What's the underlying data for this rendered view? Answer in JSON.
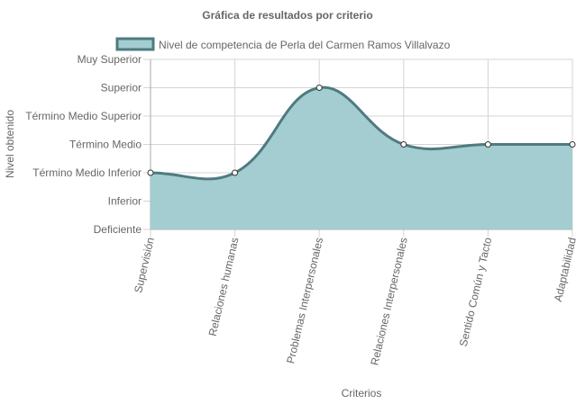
{
  "chart_data": {
    "type": "area",
    "title": "Gráfica de resultados por criterio",
    "xlabel": "Criterios",
    "ylabel": "Nivel obtenido",
    "categories": [
      "Supervisión",
      "Relaciones humanas",
      "Problemas Interpersonales",
      "Relaciones Interpersonales",
      "Sentido Común y Tacto",
      "Adaptabilidad"
    ],
    "y_levels": [
      "Deficiente",
      "Inferior",
      "Término Medio Inferior",
      "Término Medio",
      "Término Medio Superior",
      "Superior",
      "Muy Superior"
    ],
    "ylim": [
      0,
      6
    ],
    "series": [
      {
        "name": "Nivel de competencia de Perla del Carmen Ramos Villalvazo",
        "values": [
          2,
          2,
          5,
          3,
          3,
          3
        ],
        "fill_color": "#a3cdd0",
        "line_color": "#4f7a80"
      }
    ],
    "legend_position": "top",
    "grid": true
  }
}
